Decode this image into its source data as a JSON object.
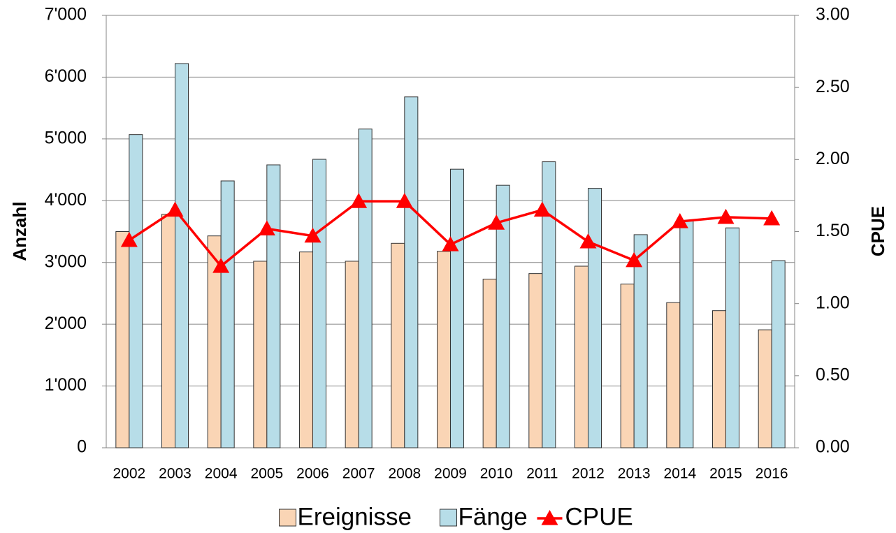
{
  "chart_data": {
    "type": "bar_line",
    "y_label": "Anzahl",
    "y2_label": "CPUE",
    "categories": [
      "2002",
      "2003",
      "2004",
      "2005",
      "2006",
      "2007",
      "2008",
      "2009",
      "2010",
      "2011",
      "2012",
      "2013",
      "2014",
      "2015",
      "2016"
    ],
    "series": [
      {
        "name": "Ereignisse",
        "type": "bar",
        "color": "#fad5b5",
        "values": [
          3500,
          3780,
          3430,
          3020,
          3170,
          3020,
          3310,
          3180,
          2730,
          2820,
          2940,
          2650,
          2350,
          2220,
          1910
        ]
      },
      {
        "name": "Fänge",
        "type": "bar",
        "color": "#b7dde8",
        "values": [
          5070,
          6220,
          4320,
          4580,
          4670,
          5160,
          5680,
          4510,
          4250,
          4630,
          4200,
          3450,
          3680,
          3560,
          3030
        ]
      },
      {
        "name": "CPUE",
        "type": "line",
        "axis": "y2",
        "color": "#ff0000",
        "values": [
          1.44,
          1.65,
          1.26,
          1.52,
          1.47,
          1.71,
          1.71,
          1.41,
          1.56,
          1.65,
          1.43,
          1.3,
          1.57,
          1.6,
          1.59
        ]
      }
    ],
    "ylim": [
      0,
      7000
    ],
    "yticks": [
      0,
      {
        "value": 1000,
        "label": "1'000"
      },
      {
        "value": 2000,
        "label": "2'000"
      },
      {
        "value": 3000,
        "label": "3'000"
      },
      {
        "value": 4000,
        "label": "4'000"
      },
      {
        "value": 5000,
        "label": "5'000"
      },
      {
        "value": 6000,
        "label": "6'000"
      },
      {
        "value": 7000,
        "label": "7'000"
      }
    ],
    "y2lim": [
      0,
      3
    ],
    "y2ticks": [
      {
        "value": 0,
        "label": "0.00"
      },
      {
        "value": 0.5,
        "label": "0.50"
      },
      {
        "value": 1,
        "label": "1.00"
      },
      {
        "value": 1.5,
        "label": "1.50"
      },
      {
        "value": 2,
        "label": "2.00"
      },
      {
        "value": 2.5,
        "label": "2.50"
      },
      {
        "value": 3,
        "label": "3.00"
      }
    ],
    "grid": true,
    "legend": "bottom"
  }
}
